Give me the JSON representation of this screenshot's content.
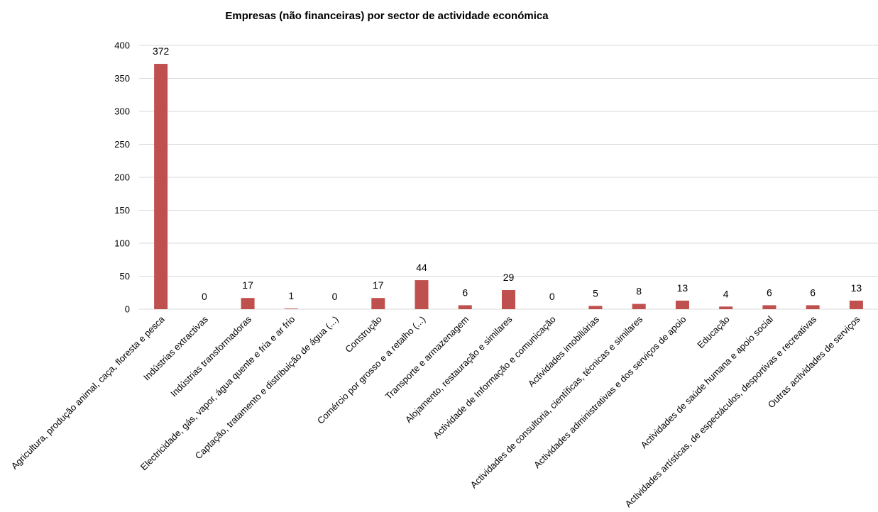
{
  "chart_data": {
    "type": "bar",
    "title": "Empresas (não financeiras) por sector de actividade económica",
    "xlabel": "",
    "ylabel": "",
    "ylim": [
      0,
      400
    ],
    "yticks": [
      0,
      50,
      100,
      150,
      200,
      250,
      300,
      350,
      400
    ],
    "grid": true,
    "bar_color": "#c0504d",
    "categories": [
      "Agricultura, produção animal, caça, floresta e pesca",
      "Indústrias extractivas",
      "Indústrias transformadoras",
      "Electricidade, gás, vapor, água quente e fria e ar frio",
      "Captação, tratamento e distribuição de água (...)",
      "Construção",
      "Comércio por grosso e a retalho (...)",
      "Transporte e armazenagem",
      "Alojamento, restauração e similares",
      "Actividade de Informação e comunicação",
      "Actividades imobiliárias",
      "Actividades de consultoria, científicas, técnicas e similares",
      "Actividades administrativas e dos serviços de apoio",
      "Educação",
      "Actividades de saúde humana e apoio social",
      "Actividades artísticas, de espectáculos, desportivas e recreativas",
      "Outras actividades de serviços"
    ],
    "values": [
      372,
      0,
      17,
      1,
      0,
      17,
      44,
      6,
      29,
      0,
      5,
      8,
      13,
      4,
      6,
      6,
      13
    ]
  }
}
